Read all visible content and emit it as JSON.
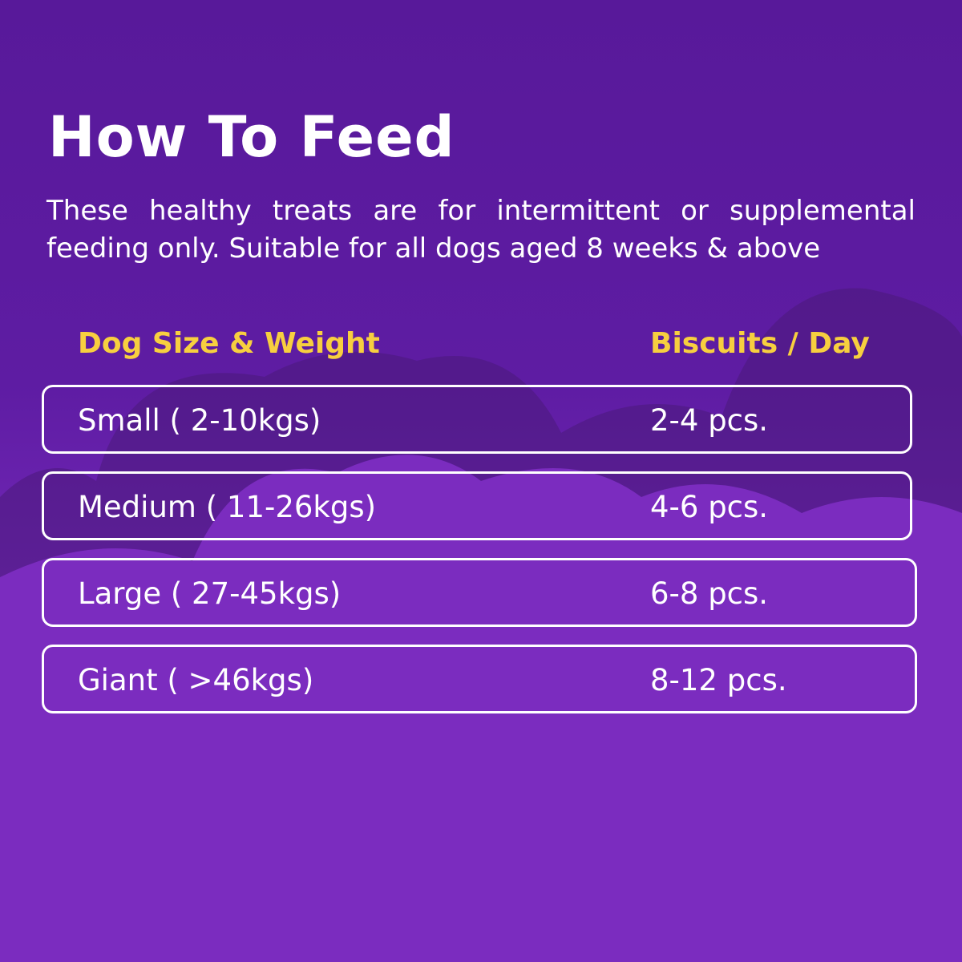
{
  "header": {
    "title": "How To Feed",
    "description": "These healthy treats are for intermittent or supplemental feeding only. Suitable for all dogs aged 8 weeks & above"
  },
  "table": {
    "columns": [
      "Dog Size & Weight",
      "Biscuits / Day"
    ],
    "rows": [
      [
        "Small ( 2-10kgs)",
        "2-4 pcs."
      ],
      [
        "Medium ( 11-26kgs)",
        "4-6 pcs."
      ],
      [
        "Large ( 27-45kgs)",
        "6-8 pcs."
      ],
      [
        "Giant ( >46kgs)",
        "8-12 pcs."
      ]
    ]
  }
}
